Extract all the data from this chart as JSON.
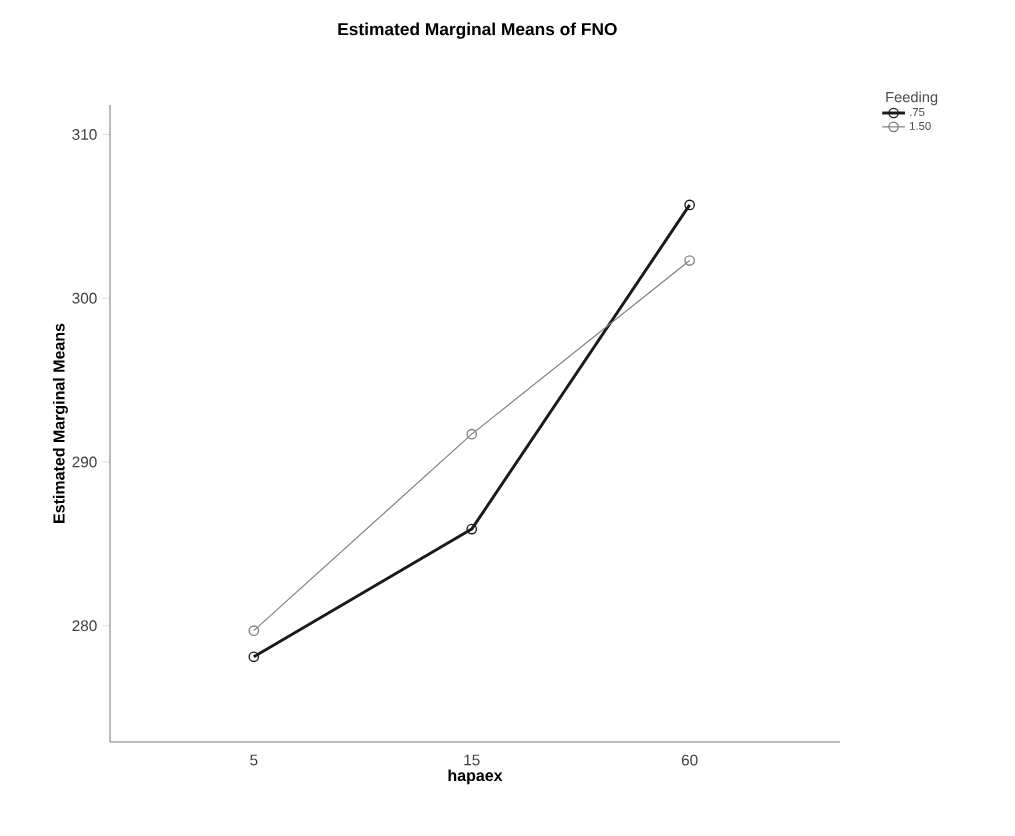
{
  "chart_data": {
    "type": "line",
    "title": "Estimated Marginal Means of FNO",
    "xlabel": "hapaex",
    "ylabel": "Estimated Marginal Means",
    "legend_title": "Feeding",
    "categories": [
      "5",
      "15",
      "60"
    ],
    "series": [
      {
        "name": ".75",
        "color": "#1a1a1a",
        "values": [
          278.1,
          285.9,
          305.7
        ]
      },
      {
        "name": "1.50",
        "color": "#808080",
        "values": [
          279.7,
          291.7,
          302.3
        ]
      }
    ],
    "ylim": [
      272.9,
      311.8
    ],
    "yticks": [
      280,
      290,
      300,
      310
    ],
    "legend": "top right",
    "marker": "circle",
    "line_style": "solid",
    "grid": false
  }
}
